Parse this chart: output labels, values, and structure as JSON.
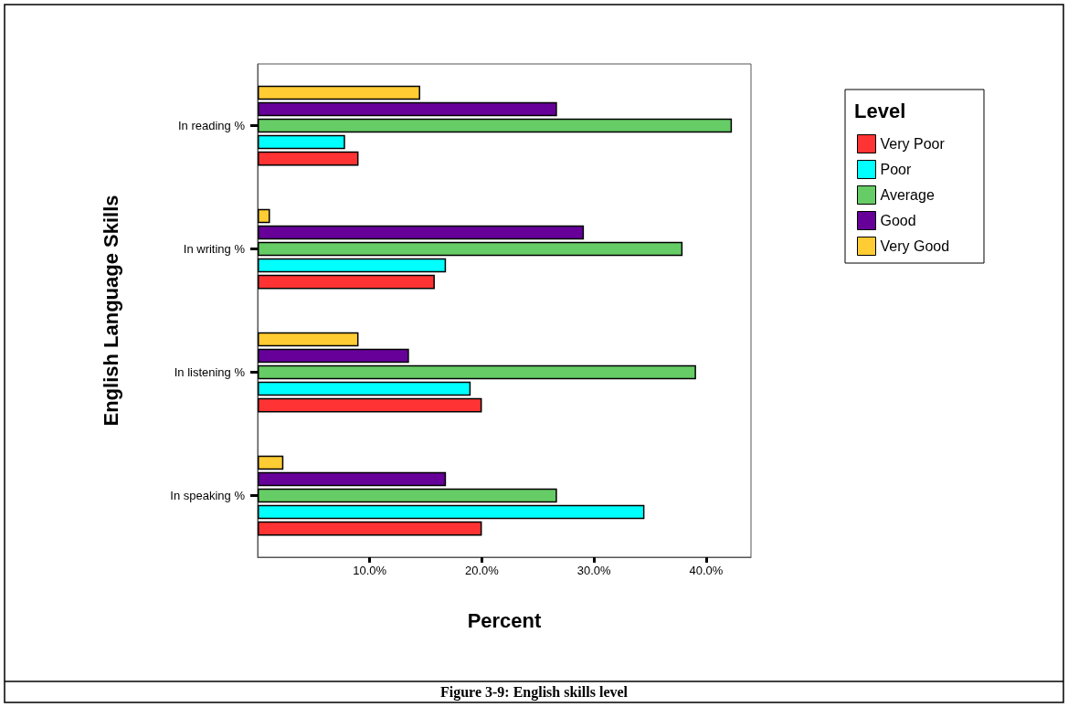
{
  "chart_data": {
    "type": "bar",
    "orientation": "horizontal",
    "title": "Figure 3-9: English skills level",
    "xlabel": "Percent",
    "ylabel": "English Language Skills",
    "legend_title": "Level",
    "legend": "top right",
    "grid": false,
    "categories": [
      "In reading %",
      "In writing %",
      "In listening %",
      "In speaking %"
    ],
    "xlim": [
      0,
      44
    ],
    "xticks": [
      {
        "value": 10,
        "label": "10.0%"
      },
      {
        "value": 20,
        "label": "20.0%"
      },
      {
        "value": 30,
        "label": "30.0%"
      },
      {
        "value": 40,
        "label": "40.0%"
      }
    ],
    "series": [
      {
        "name": "Very Poor",
        "color": "#ff3333",
        "values": [
          9.0,
          15.8,
          20.0,
          20.0
        ]
      },
      {
        "name": "Poor",
        "color": "#00ffff",
        "values": [
          7.8,
          16.8,
          19.0,
          34.5
        ]
      },
      {
        "name": "Average",
        "color": "#66cc66",
        "values": [
          42.3,
          37.9,
          39.1,
          26.7
        ]
      },
      {
        "name": "Good",
        "color": "#660099",
        "values": [
          26.7,
          29.1,
          13.5,
          16.8
        ]
      },
      {
        "name": "Very Good",
        "color": "#ffcc33",
        "values": [
          14.5,
          1.1,
          9.0,
          2.3
        ]
      }
    ]
  }
}
